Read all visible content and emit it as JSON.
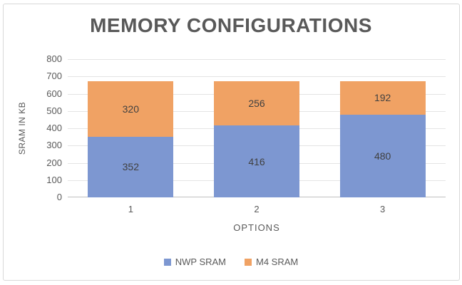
{
  "title": "MEMORY CONFIGURATIONS",
  "colors": {
    "nwp_sram_blue": "#7D97D1",
    "m4_sram_orange": "#F0A264",
    "title_text": "#595959",
    "axis_text": "#595959",
    "data_label_text": "#404040",
    "gridline": "#E4E4E4",
    "axis_line": "#BFBFBF",
    "frame_border": "#D8D8D8"
  },
  "chart_data": {
    "type": "bar",
    "stacked": true,
    "title": "MEMORY CONFIGURATIONS",
    "xlabel": "OPTIONS",
    "ylabel": "SRAM IN KB",
    "categories": [
      "1",
      "2",
      "3"
    ],
    "series": [
      {
        "name": "NWP SRAM",
        "color": "#7D97D1",
        "values": [
          352,
          416,
          480
        ]
      },
      {
        "name": "M4 SRAM",
        "color": "#F0A264",
        "values": [
          320,
          256,
          192
        ]
      }
    ],
    "totals": [
      672,
      672,
      672
    ],
    "ylim": [
      0,
      800
    ],
    "yticks": [
      0,
      100,
      200,
      300,
      400,
      500,
      600,
      700,
      800
    ],
    "grid": true,
    "data_labels": true,
    "legend_position": "bottom"
  }
}
